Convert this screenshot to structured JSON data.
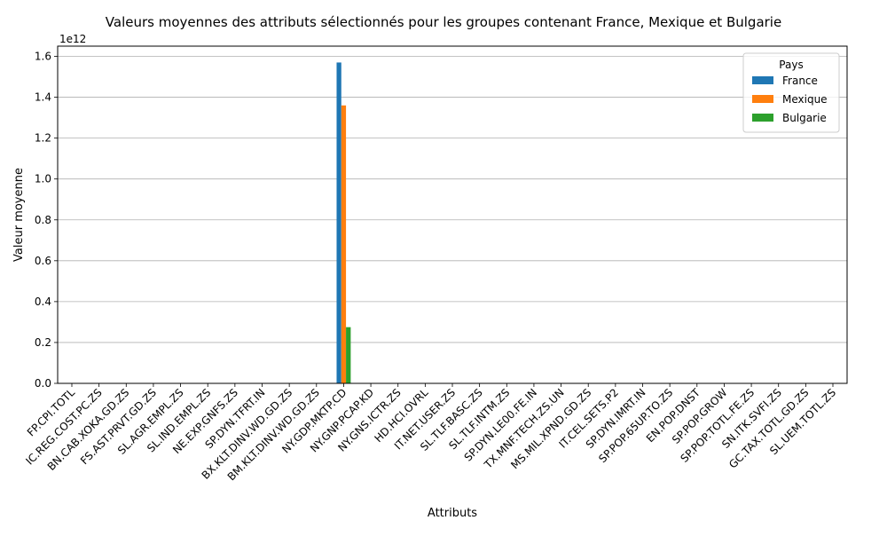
{
  "chart_data": {
    "type": "bar",
    "title": "Valeurs moyennes des attributs sélectionnés pour les groupes contenant France, Mexique et Bulgarie",
    "xlabel": "Attributs",
    "ylabel": "Valeur moyenne",
    "y_multiplier_label": "1e12",
    "ylim": [
      0,
      1.65
    ],
    "yticks": [
      "0.0",
      "0.2",
      "0.4",
      "0.6",
      "0.8",
      "1.0",
      "1.2",
      "1.4",
      "1.6"
    ],
    "grid": true,
    "legend": {
      "title": "Pays",
      "placement": "top-right"
    },
    "categories": [
      "FP.CPI.TOTL",
      "IC.REG.COST.PC.ZS",
      "BN.CAB.XOKA.GD.ZS",
      "FS.AST.PRVT.GD.ZS",
      "SL.AGR.EMPL.ZS",
      "SL.IND.EMPL.ZS",
      "NE.EXP.GNFS.ZS",
      "SP.DYN.TFRT.IN",
      "BX.KLT.DINV.WD.GD.ZS",
      "BM.KLT.DINV.WD.GD.ZS",
      "NY.GDP.MKTP.CD",
      "NY.GNP.PCAP.KD",
      "NY.GNS.ICTR.ZS",
      "HD.HCI.OVRL",
      "IT.NET.USER.ZS",
      "SL.TLF.BASC.ZS",
      "SL.TLF.INTM.ZS",
      "SP.DYN.LE00.FE.IN",
      "TX.MNF.TECH.ZS.UN",
      "MS.MIL.XPND.GD.ZS",
      "IT.CEL.SETS.P2",
      "SP.DYN.IMRT.IN",
      "SP.POP.65UP.TO.ZS",
      "EN.POP.DNST",
      "SP.POP.GROW",
      "SP.POP.TOTL.FE.ZS",
      "SN.ITK.SVFI.ZS",
      "GC.TAX.TOTL.GD.ZS",
      "SL.UEM.TOTL.ZS"
    ],
    "series": [
      {
        "name": "France",
        "color": "#1f77b4",
        "values": [
          0,
          0,
          0,
          0,
          0,
          0,
          0,
          0,
          0,
          0,
          1.57,
          0,
          0,
          0,
          0,
          0,
          0,
          0,
          0,
          0,
          0,
          0,
          0,
          0,
          0,
          0,
          0,
          0,
          0
        ]
      },
      {
        "name": "Mexique",
        "color": "#ff7f0e",
        "values": [
          0,
          0,
          0,
          0,
          0,
          0,
          0,
          0,
          0,
          0,
          1.36,
          0,
          0,
          0,
          0,
          0,
          0,
          0,
          0,
          0,
          0,
          0,
          0,
          0,
          0,
          0,
          0,
          0,
          0
        ]
      },
      {
        "name": "Bulgarie",
        "color": "#2ca02c",
        "values": [
          0,
          0,
          0,
          0,
          0,
          0,
          0,
          0,
          0,
          0,
          0.275,
          0,
          0,
          0,
          0,
          0,
          0,
          0,
          0,
          0,
          0,
          0,
          0,
          0,
          0,
          0,
          0,
          0,
          0
        ]
      }
    ]
  }
}
